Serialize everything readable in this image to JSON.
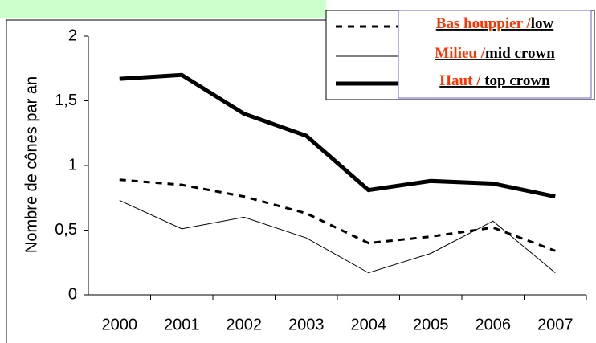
{
  "chart_data": {
    "type": "line",
    "y_label": "Nombre de cônes par an",
    "categories": [
      "2000",
      "2001",
      "2002",
      "2003",
      "2004",
      "2005",
      "2006",
      "2007"
    ],
    "series": [
      {
        "name": "Bas houppier /low",
        "color": "#000000",
        "style": "dashed",
        "width": 3,
        "values": [
          0.89,
          0.85,
          0.76,
          0.63,
          0.4,
          0.45,
          0.52,
          0.34
        ]
      },
      {
        "name": "Milieu /mid crown",
        "color": "#000000",
        "style": "solid",
        "width": 1,
        "values": [
          0.73,
          0.51,
          0.6,
          0.44,
          0.17,
          0.32,
          0.57,
          0.17
        ]
      },
      {
        "name": "Haut / top crown",
        "color": "#000000",
        "style": "solid",
        "width": 5,
        "values": [
          1.67,
          1.7,
          1.4,
          1.23,
          0.81,
          0.88,
          0.86,
          0.76
        ]
      }
    ],
    "ylim": [
      0,
      2
    ],
    "yticks": [
      0,
      {
        "value": 0.5,
        "label": "0,5"
      },
      1,
      {
        "value": 1.5,
        "label": "1,5"
      },
      2
    ],
    "legend_position": "upper right",
    "legend_prefix_color": "#ff3300"
  }
}
